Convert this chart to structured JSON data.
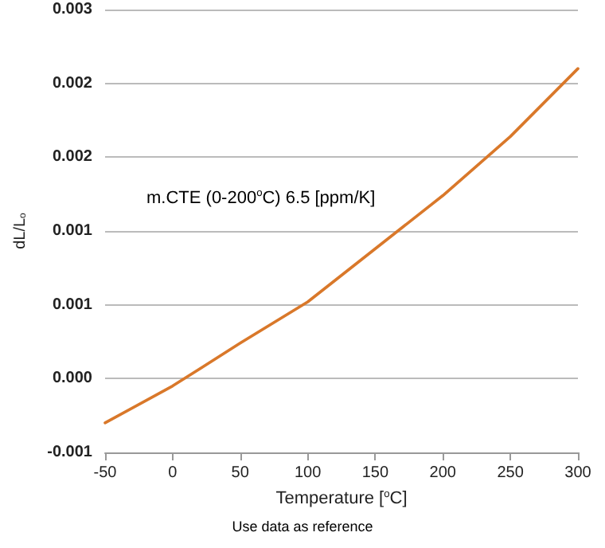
{
  "chart_data": {
    "type": "line",
    "xlabel": "Temperature [$^{o}$C]",
    "ylabel": "dL/L$_{o}$",
    "annotations": [
      "m.CTE (0-200$^{o}$C) 6.5 [ppm/K]",
      "Use data as reference"
    ],
    "x": [
      -50,
      0,
      50,
      100,
      150,
      200,
      250,
      300
    ],
    "series": [
      {
        "color": "#d9782a",
        "values": [
          -0.0003,
          -5e-05,
          0.00024,
          0.00052,
          0.00088,
          0.00124,
          0.00164,
          0.0021
        ]
      }
    ],
    "xlim": [
      -50,
      300
    ],
    "xticks": [
      -50,
      0,
      50,
      100,
      150,
      200,
      250,
      300
    ],
    "ylim": [
      -0.0005,
      0.0025
    ],
    "yticks": [
      {
        "value": -0.0005,
        "label": "-0.001"
      },
      {
        "value": 0,
        "label": "0.000"
      },
      {
        "value": 0.0005,
        "label": "0.001"
      },
      {
        "value": 0.001,
        "label": "0.001"
      },
      {
        "value": 0.0015,
        "label": "0.002"
      },
      {
        "value": 0.002,
        "label": "0.002"
      },
      {
        "value": 0.0025,
        "label": "0.003"
      }
    ],
    "grid": "y",
    "marker": "none",
    "line_style": "solid"
  }
}
